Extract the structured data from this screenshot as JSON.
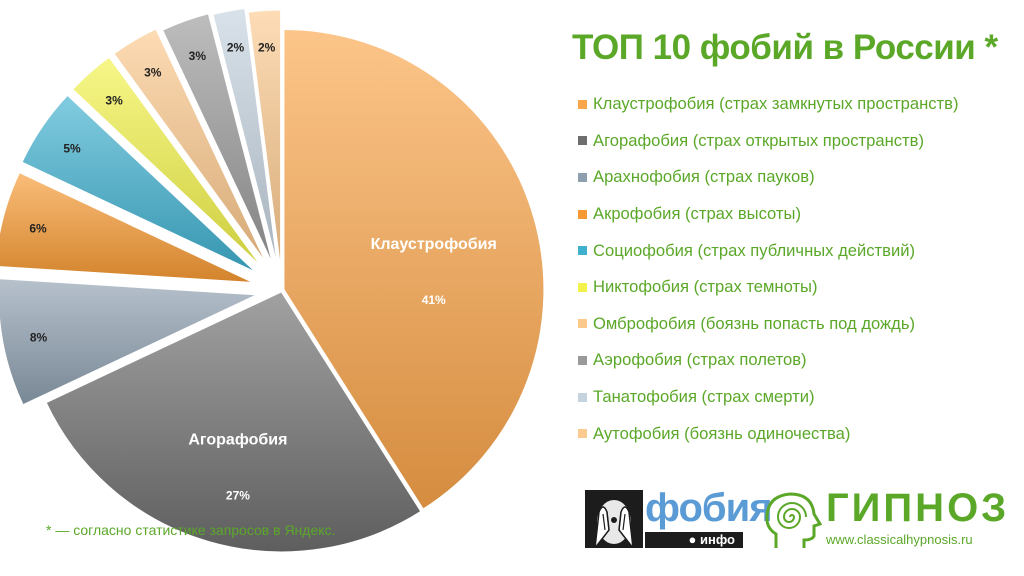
{
  "title": "ТОП 10 фобий в России *",
  "footnote": "* — согласно статистике запросов в Яндекс.",
  "logos": {
    "fobia_name": "фобия",
    "fobia_sub": "● инфо",
    "gipnoz_name": "ГИПНОЗ",
    "gipnoz_url": "www.classicalhypnosis.ru"
  },
  "chart_data": {
    "type": "pie",
    "title": "ТОП 10 фобий в России *",
    "legend_position": "right",
    "slice_labels": [
      "Клаустрофобия",
      "Агорафобия"
    ],
    "slices": [
      {
        "legend": "Клаустрофобия (страх замкнутых пространств)",
        "value": 41,
        "label": "41%",
        "name": "Клаустрофобия",
        "color": "#fba54a"
      },
      {
        "legend": "Агорафобия (страх открытых пространств)",
        "value": 27,
        "label": "27%",
        "name": "Агорафобия",
        "color": "#6e6e6e"
      },
      {
        "legend": "Арахнофобия (страх пауков)",
        "value": 8,
        "label": "8%",
        "color": "#8ea0b0"
      },
      {
        "legend": "Акрофобия (страх высоты)",
        "value": 6,
        "label": "6%",
        "color": "#f89a33"
      },
      {
        "legend": "Социофобия (страх публичных действий)",
        "value": 5,
        "label": "5%",
        "color": "#3fb1cf"
      },
      {
        "legend": "Никтофобия (страх темноты)",
        "value": 3,
        "label": "3%",
        "color": "#f2f24a"
      },
      {
        "legend": "Омброфобия (боязнь попасть под дождь)",
        "value": 3,
        "label": "3%",
        "color": "#fcc88c"
      },
      {
        "legend": "Аэрофобия (страх полетов)",
        "value": 3,
        "label": "3%",
        "color": "#9a9a9a"
      },
      {
        "legend": "Танатофобия (страх смерти)",
        "value": 2,
        "label": "2%",
        "color": "#c5d3df"
      },
      {
        "legend": "Аутофобия (боязнь одиночества)",
        "value": 2,
        "label": "2%",
        "color": "#fcc98e"
      }
    ]
  }
}
